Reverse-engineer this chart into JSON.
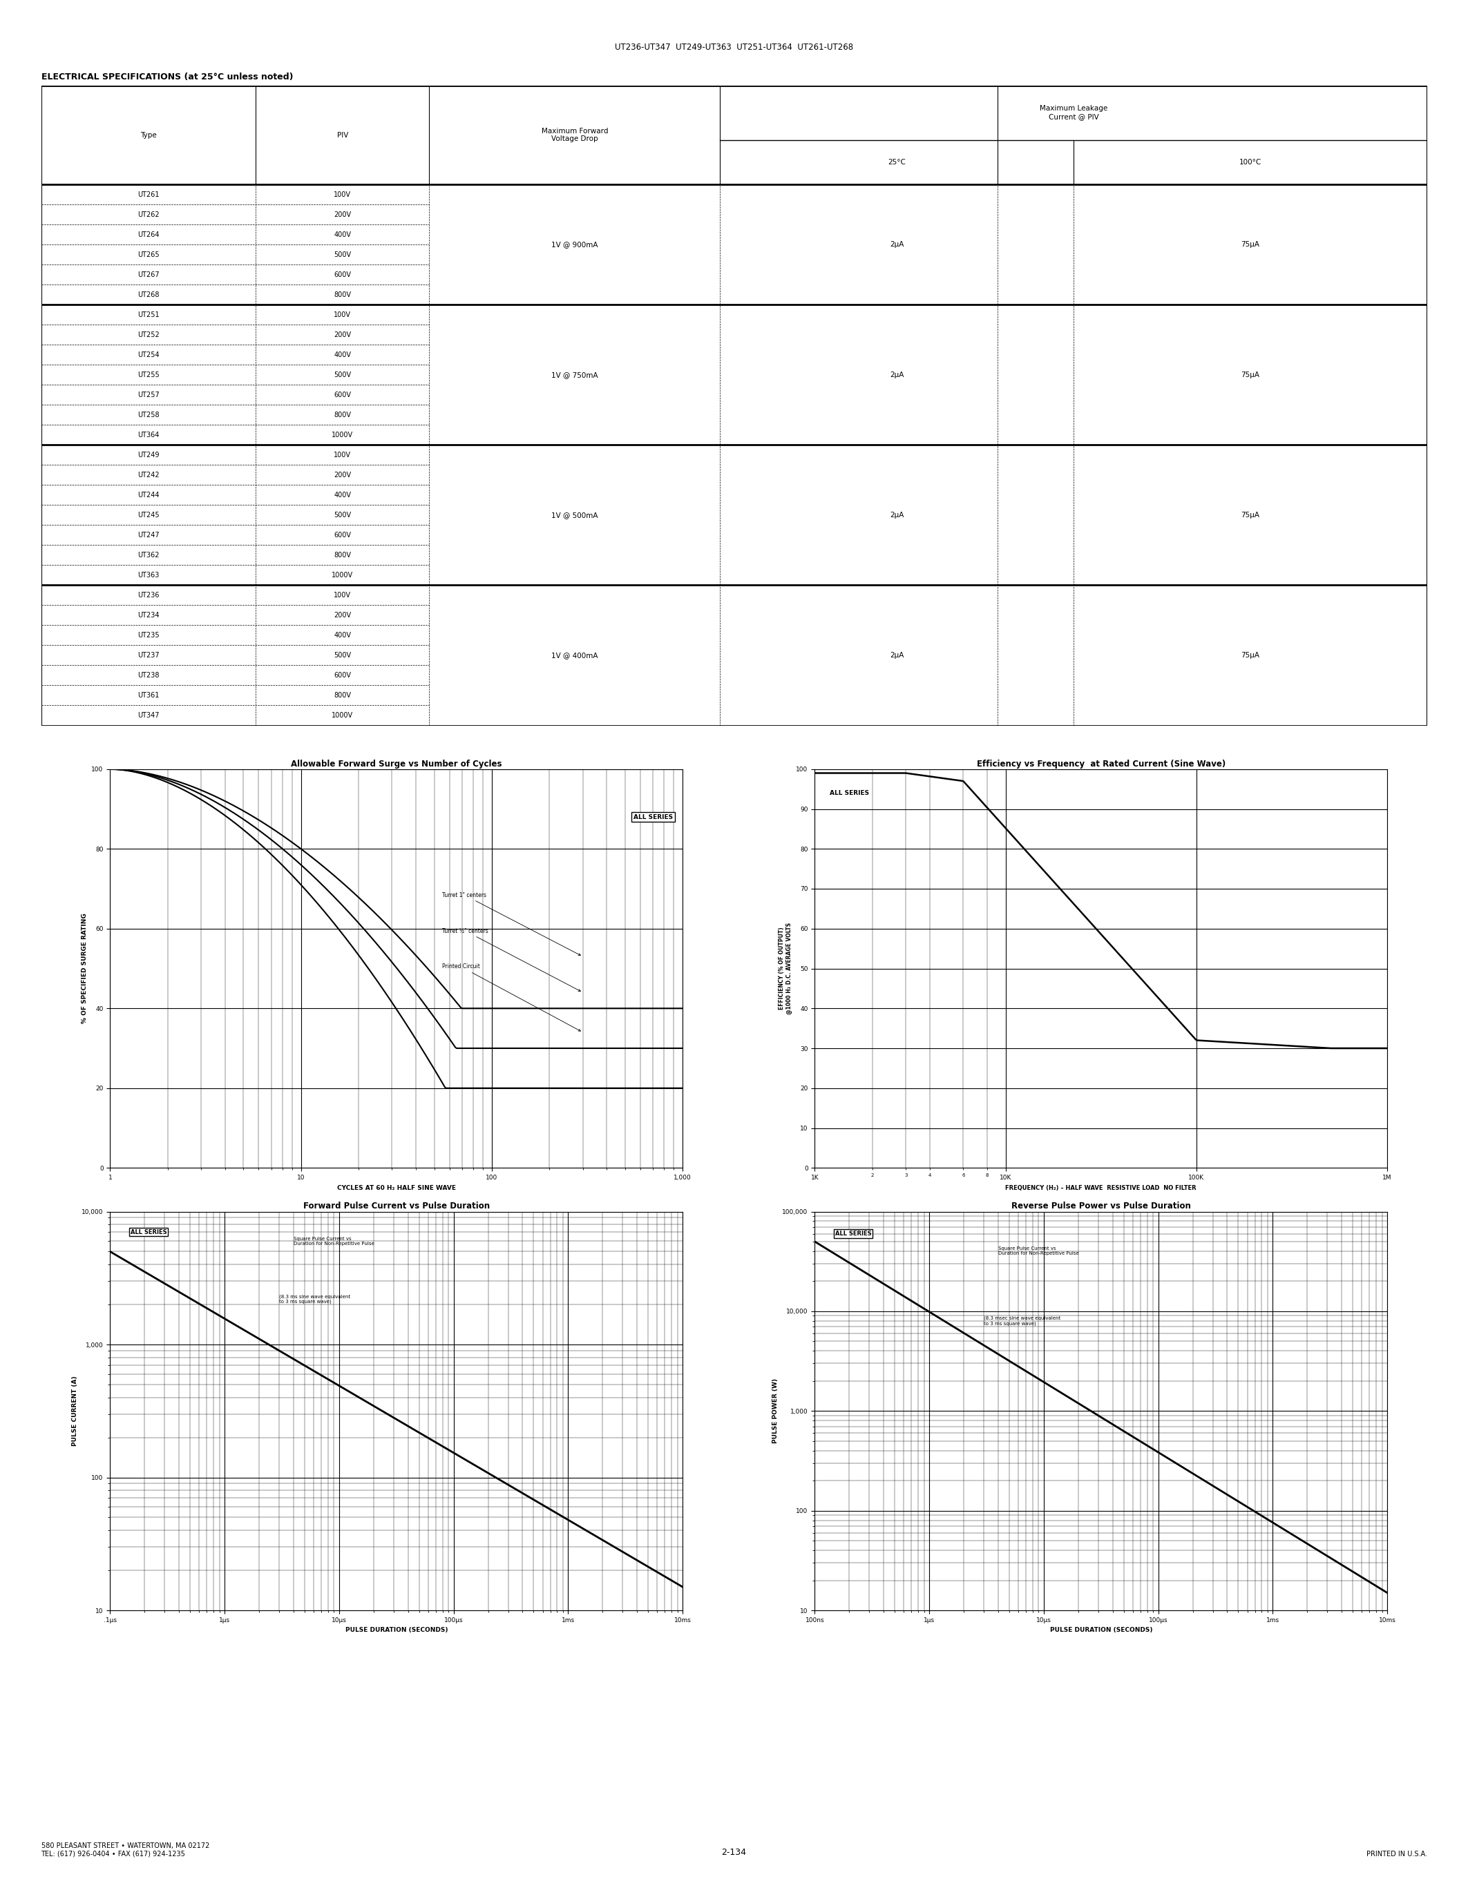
{
  "page_title": "UT236-UT347  UT249-UT363  UT251-UT364  UT261-UT268",
  "section_title": "ELECTRICAL SPECIFICATIONS (at 25°C unless noted)",
  "table_groups": [
    {
      "types": [
        "UT261",
        "UT262",
        "UT264",
        "UT265",
        "UT267",
        "UT268"
      ],
      "pivs": [
        "100V",
        "200V",
        "400V",
        "500V",
        "600V",
        "800V"
      ],
      "vdrop": "1V @ 900mA",
      "leak25": "2μA",
      "leak100": "75μA"
    },
    {
      "types": [
        "UT251",
        "UT252",
        "UT254",
        "UT255",
        "UT257",
        "UT258",
        "UT364"
      ],
      "pivs": [
        "100V",
        "200V",
        "400V",
        "500V",
        "600V",
        "800V",
        "1000V"
      ],
      "vdrop": "1V @ 750mA",
      "leak25": "2μA",
      "leak100": "75μA"
    },
    {
      "types": [
        "UT249",
        "UT242",
        "UT244",
        "UT245",
        "UT247",
        "UT362",
        "UT363"
      ],
      "pivs": [
        "100V",
        "200V",
        "400V",
        "500V",
        "600V",
        "800V",
        "1000V"
      ],
      "vdrop": "1V @ 500mA",
      "leak25": "2μA",
      "leak100": "75μA"
    },
    {
      "types": [
        "UT236",
        "UT234",
        "UT235",
        "UT237",
        "UT238",
        "UT361",
        "UT347"
      ],
      "pivs": [
        "100V",
        "200V",
        "400V",
        "500V",
        "600V",
        "800V",
        "1000V"
      ],
      "vdrop": "1V @ 400mA",
      "leak25": "2μA",
      "leak100": "75μA"
    }
  ],
  "graph1_title": "Allowable Forward Surge vs Number of Cycles",
  "graph1_xlabel": "CYCLES AT 60 H₂ HALF SINE WAVE",
  "graph1_ylabel": "% OF SPECIFIED SURGE RATING",
  "graph2_title": "Efficiency vs Frequency  at Rated Current (Sine Wave)",
  "graph2_xlabel": "FREQUENCY (H₂) – HALF WAVE  RESISTIVE LOAD  NO FILTER",
  "graph2_ylabel": "EFFICIENCY (% OF OUTPUT)\n@1000 H₂ D.C. AVERAGE VOLTS",
  "graph3_title": "Forward Pulse Current vs Pulse Duration",
  "graph3_xlabel": "PULSE DURATION (SECONDS)",
  "graph3_ylabel": "PULSE CURRENT (A)",
  "graph4_title": "Reverse Pulse Power vs Pulse Duration",
  "graph4_xlabel": "PULSE DURATION (SECONDS)",
  "graph4_ylabel": "PULSE POWER (W)",
  "footer_left": "580 PLEASANT STREET • WATERTOWN, MA 02172\nTEL: (617) 926-0404 • FAX (617) 924-1235",
  "footer_center": "2-134",
  "footer_right": "PRINTED IN U.S.A."
}
